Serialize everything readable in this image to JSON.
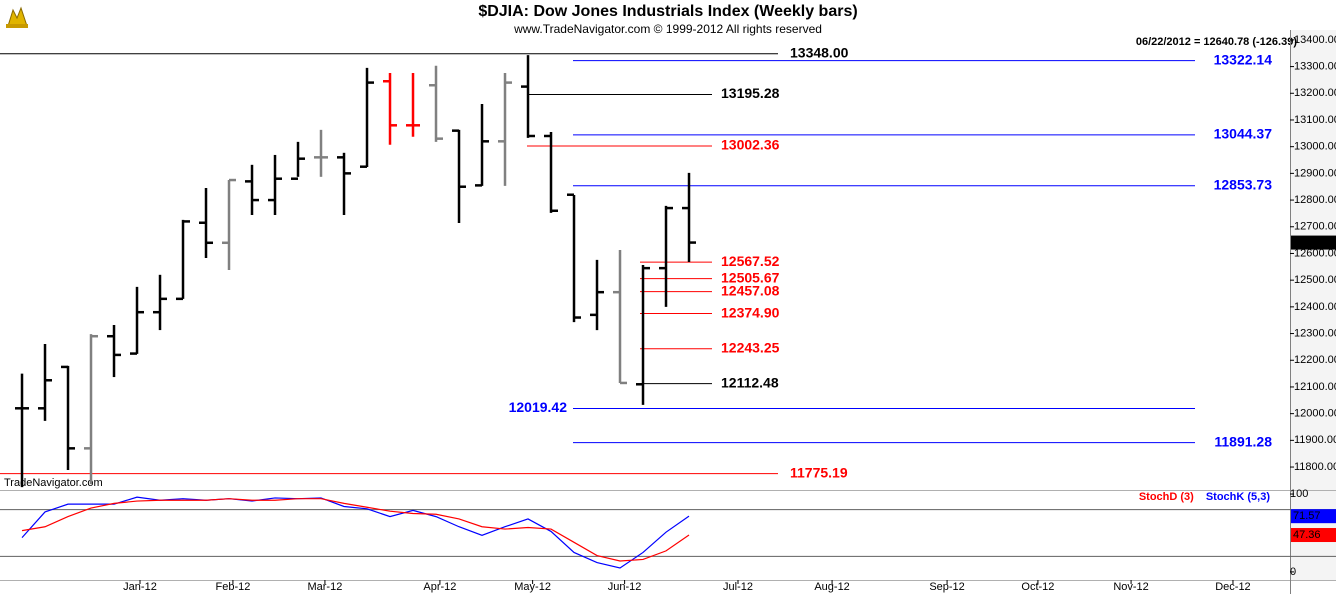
{
  "chart_data": [
    {
      "type": "ohlc",
      "title": "$DJIA:  Dow Jones Industrials Index  (Weekly bars)",
      "subtitle": "www.TradeNavigator.com © 1999-2012 All rights reserved",
      "annotation": "06/22/2012 = 12640.78 (-126.39)",
      "watermark": "TradeNavigator.com",
      "x": [
        0,
        1,
        2,
        3,
        4,
        5,
        6,
        7,
        8,
        9,
        10,
        11,
        12,
        13,
        14,
        15,
        16,
        17,
        18,
        19,
        20,
        21,
        22,
        23,
        24,
        25,
        26,
        27,
        28,
        29
      ],
      "open": [
        12020,
        12020,
        12175,
        11870,
        12290,
        12225,
        12380,
        12430,
        12715,
        12640,
        12870,
        12800,
        12880,
        12960,
        12960,
        12925,
        13245,
        13080,
        13230,
        13060,
        12855,
        13020,
        13225,
        13040,
        12820,
        12370,
        12455,
        12110,
        12545,
        12770
      ],
      "high": [
        12150,
        12261,
        12179,
        12298,
        12332,
        12475,
        12520,
        12726,
        12845,
        12875,
        12932,
        12969,
        13018,
        13063,
        12977,
        13295,
        13276,
        13276,
        13303,
        13063,
        13160,
        13276,
        13343,
        13055,
        12819,
        12576,
        12613,
        12557,
        12778,
        12902
      ],
      "low": [
        11725,
        11973,
        11789,
        11736,
        12137,
        12224,
        12313,
        12430,
        12583,
        12538,
        12744,
        12744,
        12887,
        12887,
        12744,
        12924,
        13007,
        13037,
        13018,
        12714,
        12853,
        12853,
        13033,
        12752,
        12343,
        12313,
        12115,
        12033,
        12400,
        12568
      ],
      "close": [
        12020,
        12125,
        11870,
        12290,
        12220,
        12380,
        12430,
        12720,
        12640,
        12875,
        12800,
        12880,
        12955,
        12960,
        12900,
        13240,
        13080,
        13080,
        13030,
        12850,
        13020,
        13240,
        13040,
        12760,
        12360,
        12455,
        12115,
        12545,
        12770,
        12640.78
      ],
      "colors": [
        "#000000",
        "#000000",
        "#000000",
        "#808080",
        "#000000",
        "#000000",
        "#000000",
        "#000000",
        "#000000",
        "#808080",
        "#000000",
        "#000000",
        "#000000",
        "#808080",
        "#000000",
        "#000000",
        "#ff0000",
        "#ff0000",
        "#808080",
        "#000000",
        "#000000",
        "#808080",
        "#000000",
        "#000000",
        "#000000",
        "#000000",
        "#808080",
        "#000000",
        "#000000",
        "#000000"
      ],
      "xlim": [
        -0.957,
        55.13
      ],
      "xticks": [
        {
          "value": 5.13,
          "label": "Jan-12"
        },
        {
          "value": 9.17,
          "label": "Feb-12"
        },
        {
          "value": 13.17,
          "label": "Mar-12"
        },
        {
          "value": 18.17,
          "label": "Apr-12"
        },
        {
          "value": 22.2,
          "label": "May-12"
        },
        {
          "value": 26.2,
          "label": "Jun-12"
        },
        {
          "value": 31.13,
          "label": "Jul-12"
        },
        {
          "value": 35.22,
          "label": "Aug-12"
        },
        {
          "value": 40.22,
          "label": "Sep-12"
        },
        {
          "value": 44.17,
          "label": "Oct-12"
        },
        {
          "value": 48.22,
          "label": "Nov-12"
        },
        {
          "value": 52.65,
          "label": "Dec-12"
        }
      ],
      "ylim": [
        11714,
        13437
      ],
      "yticks": [
        {
          "value": 11800,
          "label": "11800.00"
        },
        {
          "value": 11900,
          "label": "11900.00"
        },
        {
          "value": 12000,
          "label": "12000.00"
        },
        {
          "value": 12100,
          "label": "12100.00"
        },
        {
          "value": 12200,
          "label": "12200.00"
        },
        {
          "value": 12300,
          "label": "12300.00"
        },
        {
          "value": 12400,
          "label": "12400.00"
        },
        {
          "value": 12500,
          "label": "12500.00"
        },
        {
          "value": 12600,
          "label": "12600.00"
        },
        {
          "value": 12700,
          "label": "12700.00"
        },
        {
          "value": 12800,
          "label": "12800.00"
        },
        {
          "value": 12900,
          "label": "12900.00"
        },
        {
          "value": 13000,
          "label": "13000.00"
        },
        {
          "value": 13100,
          "label": "13100.00"
        },
        {
          "value": 13200,
          "label": "13200.00"
        },
        {
          "value": 13300,
          "label": "13300.00"
        },
        {
          "value": 13400,
          "label": "13400.00"
        }
      ],
      "levels": [
        {
          "value": 13348,
          "label": "13348.00",
          "color": "#000000"
        },
        {
          "value": 13322.14,
          "label": "13322.14",
          "color": "#0000ff"
        },
        {
          "value": 13195.28,
          "label": "13195.28",
          "color": "#000000"
        },
        {
          "value": 13044.37,
          "label": "13044.37",
          "color": "#0000ff"
        },
        {
          "value": 13002.36,
          "label": "13002.36",
          "color": "#ff0000"
        },
        {
          "value": 12853.73,
          "label": "12853.73",
          "color": "#0000ff"
        },
        {
          "value": 12567.52,
          "label": "12567.52",
          "color": "#ff0000"
        },
        {
          "value": 12505.67,
          "label": "12505.67",
          "color": "#ff0000"
        },
        {
          "value": 12457.08,
          "label": "12457.08",
          "color": "#ff0000"
        },
        {
          "value": 12374.9,
          "label": "12374.90",
          "color": "#ff0000"
        },
        {
          "value": 12243.25,
          "label": "12243.25",
          "color": "#ff0000"
        },
        {
          "value": 12112.48,
          "label": "12112.48",
          "color": "#000000"
        },
        {
          "value": 12019.42,
          "label": "12019.42",
          "color": "#0000ff"
        },
        {
          "value": 11891.28,
          "label": "11891.28",
          "color": "#0000ff"
        },
        {
          "value": 11775.19,
          "label": "11775.19",
          "color": "#ff0000"
        }
      ]
    },
    {
      "type": "line",
      "x": [
        0,
        1,
        2,
        3,
        4,
        5,
        6,
        7,
        8,
        9,
        10,
        11,
        12,
        13,
        14,
        15,
        16,
        17,
        18,
        19,
        20,
        21,
        22,
        23,
        24,
        25,
        26,
        27,
        28,
        29
      ],
      "series": [
        {
          "name": "StochK (5,3)",
          "color": "#0000ff",
          "values": [
            44,
            77,
            87,
            87,
            87,
            96,
            92,
            94,
            92,
            94,
            91,
            95,
            94,
            95,
            84,
            81,
            71,
            79,
            71,
            58,
            47,
            58,
            68,
            52,
            25,
            12,
            5,
            25,
            51,
            71.57
          ]
        },
        {
          "name": "StochD (3)",
          "color": "#ff0000",
          "values": [
            53,
            58,
            71,
            82,
            88,
            91,
            92,
            92,
            92,
            94,
            92,
            92,
            94,
            94,
            88,
            83,
            78,
            75,
            74,
            68,
            58,
            55,
            57,
            55,
            38,
            21,
            14,
            16,
            27,
            47.36
          ]
        }
      ],
      "xlim": [
        -0.957,
        55.13
      ],
      "ylim": [
        -10.4,
        103.9
      ],
      "yticks": [
        0,
        100
      ],
      "reference_lines": [
        80,
        20
      ]
    }
  ]
}
